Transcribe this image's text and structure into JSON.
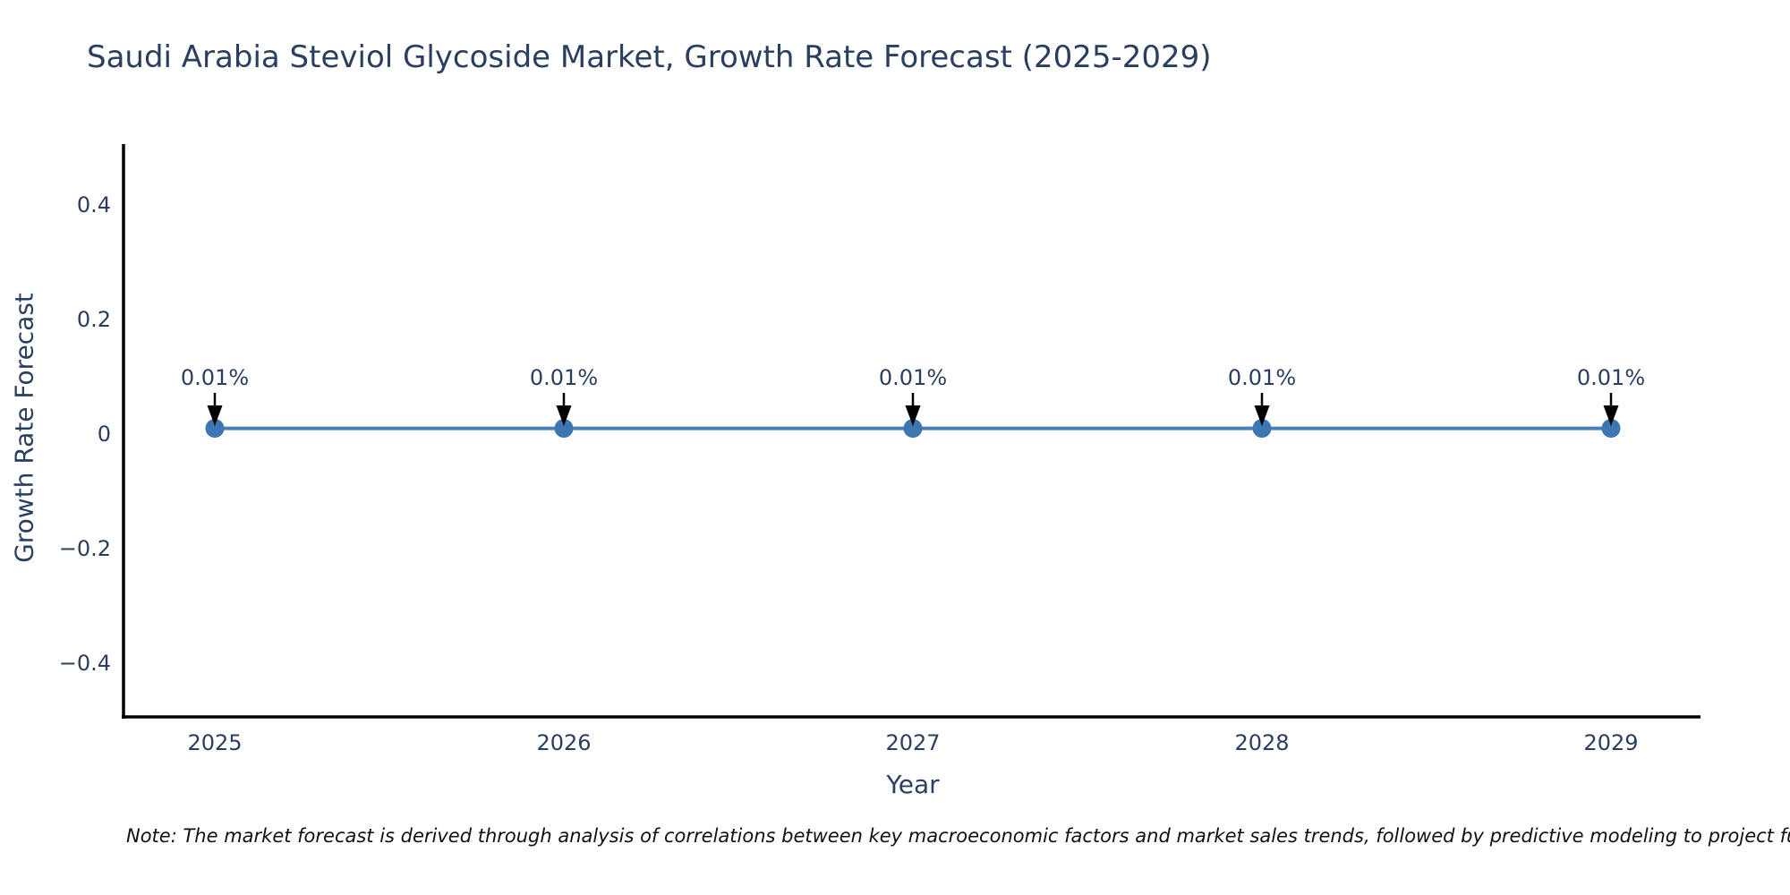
{
  "title": "Saudi Arabia Steviol Glycoside Market, Growth Rate Forecast (2025-2029)",
  "note": "Note: The market forecast is derived through analysis of correlations between key macroeconomic factors and market sales trends, followed by predictive modeling to project future sa",
  "colors": {
    "text": "#2a3f5f",
    "axis_line": "#000000",
    "series_line": "#4a80b8",
    "marker_fill": "#3d77b2",
    "annotation_arrow": "#000000",
    "note_text": "#111111",
    "background": "#ffffff"
  },
  "chart_data": {
    "type": "line",
    "title": "Saudi Arabia Steviol Glycoside Market, Growth Rate Forecast (2025-2029)",
    "xlabel": "Year",
    "ylabel": "Growth Rate Forecast",
    "x": [
      2025,
      2026,
      2027,
      2028,
      2029
    ],
    "y": [
      0.01,
      0.01,
      0.01,
      0.01,
      0.01
    ],
    "point_labels": [
      "0.01%",
      "0.01%",
      "0.01%",
      "0.01%",
      "0.01%"
    ],
    "x_tick_labels": [
      "2025",
      "2026",
      "2027",
      "2028",
      "2029"
    ],
    "y_ticks": [
      0.4,
      0.2,
      0,
      -0.2,
      -0.4
    ],
    "y_tick_labels": [
      "0.4",
      "0.2",
      "0",
      "−0.2",
      "−0.4"
    ],
    "ylim": [
      -0.495,
      0.506
    ],
    "grid": false,
    "legend": "none",
    "marker": "circle",
    "annotation_style": "value label with down arrow to each point"
  }
}
